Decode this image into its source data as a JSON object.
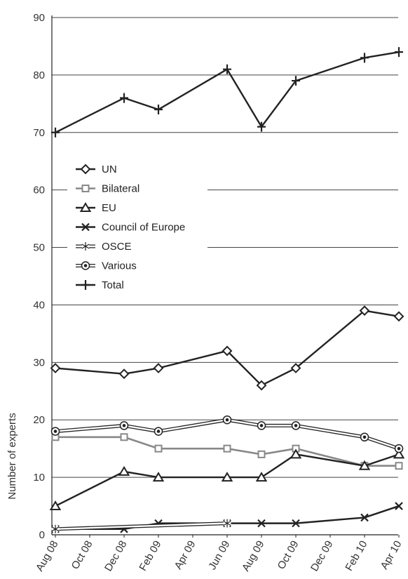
{
  "chart_data": {
    "type": "line",
    "ylabel": "Number of experts",
    "xlabel": "",
    "title": "",
    "ylim": [
      0,
      90
    ],
    "yticks": [
      0,
      10,
      20,
      30,
      40,
      50,
      60,
      70,
      80,
      90
    ],
    "x_ticks": [
      "Aug 08",
      "Oct 08",
      "Dec 08",
      "Feb 09",
      "Apr 09",
      "Jun 09",
      "Aug 09",
      "Oct 09",
      "Dec 09",
      "Feb 10",
      "Apr 10"
    ],
    "grid": "horizontal",
    "legend_position": "left-middle",
    "series": [
      {
        "name": "UN",
        "marker": "diamond",
        "color": "#222222",
        "x": [
          "Aug 08",
          "Dec 08",
          "Feb 09",
          "Jun 09",
          "Aug 09",
          "Oct 09",
          "Feb 10",
          "Apr 10"
        ],
        "values": [
          29,
          28,
          29,
          32,
          26,
          29,
          39,
          38
        ]
      },
      {
        "name": "Bilateral",
        "marker": "square",
        "color": "#888888",
        "x": [
          "Aug 08",
          "Dec 08",
          "Feb 09",
          "Jun 09",
          "Aug 09",
          "Oct 09",
          "Feb 10",
          "Apr 10"
        ],
        "values": [
          17,
          17,
          15,
          15,
          14,
          15,
          12,
          12
        ]
      },
      {
        "name": "EU",
        "marker": "triangle",
        "color": "#222222",
        "x": [
          "Aug 08",
          "Dec 08",
          "Feb 09",
          "Jun 09",
          "Aug 09",
          "Oct 09",
          "Feb 10",
          "Apr 10"
        ],
        "values": [
          5,
          11,
          10,
          10,
          10,
          14,
          12,
          14
        ]
      },
      {
        "name": "Council of Europe",
        "marker": "x",
        "color": "#222222",
        "x": [
          "Aug 08",
          "Dec 08",
          "Feb 09",
          "Jun 09",
          "Aug 09",
          "Oct 09",
          "Feb 10",
          "Apr 10"
        ],
        "values": [
          1,
          1,
          2,
          2,
          2,
          2,
          3,
          5
        ]
      },
      {
        "name": "OSCE",
        "marker": "star",
        "color": "#222222",
        "x": [
          "Aug 08",
          "Jun 09"
        ],
        "values": [
          1,
          2
        ]
      },
      {
        "name": "Various",
        "marker": "circle-dot",
        "color": "#222222",
        "x": [
          "Aug 08",
          "Dec 08",
          "Feb 09",
          "Jun 09",
          "Aug 09",
          "Oct 09",
          "Feb 10",
          "Apr 10"
        ],
        "values": [
          18,
          19,
          18,
          20,
          19,
          19,
          17,
          15
        ]
      },
      {
        "name": "Total",
        "marker": "plus",
        "color": "#222222",
        "x": [
          "Aug 08",
          "Dec 08",
          "Feb 09",
          "Jun 09",
          "Aug 09",
          "Oct 09",
          "Feb 10",
          "Apr 10"
        ],
        "values": [
          70,
          76,
          74,
          81,
          71,
          79,
          83,
          84
        ]
      }
    ]
  }
}
